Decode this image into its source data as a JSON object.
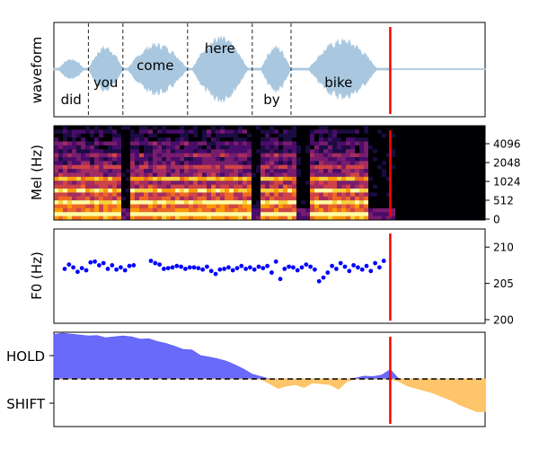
{
  "chart_data": [
    {
      "panel": "waveform",
      "type": "line",
      "ylabel": "waveform",
      "wave_color": "#a9c8e0",
      "words": [
        {
          "text": "did",
          "pos": "low",
          "start": 0.0,
          "end": 0.08
        },
        {
          "text": "you",
          "pos": "mid",
          "start": 0.08,
          "end": 0.16
        },
        {
          "text": "come",
          "pos": "high",
          "start": 0.16,
          "end": 0.31
        },
        {
          "text": "here",
          "pos": "top",
          "start": 0.31,
          "end": 0.46
        },
        {
          "text": "by",
          "pos": "low",
          "start": 0.46,
          "end": 0.55
        },
        {
          "text": "bike",
          "pos": "mid",
          "start": 0.55,
          "end": 0.77
        }
      ],
      "boundaries": [
        0.08,
        0.16,
        0.31,
        0.46,
        0.55
      ],
      "cursor": 0.78,
      "cursor_color": "#ff0000"
    },
    {
      "panel": "mel",
      "type": "heatmap",
      "ylabel": "Mel (Hz)",
      "yticks": [
        "4096",
        "2048",
        "1024",
        "512",
        "0"
      ],
      "cursor": 0.78
    },
    {
      "panel": "f0",
      "type": "scatter",
      "ylabel": "F0 (Hz)",
      "ylim": [
        199.5,
        212.5
      ],
      "yticks": [
        "210",
        "205",
        "200"
      ],
      "point_color": "#0000ff",
      "x": [
        0.025,
        0.035,
        0.045,
        0.055,
        0.065,
        0.075,
        0.085,
        0.095,
        0.105,
        0.115,
        0.125,
        0.135,
        0.145,
        0.155,
        0.165,
        0.175,
        0.185,
        0.225,
        0.235,
        0.245,
        0.255,
        0.265,
        0.275,
        0.285,
        0.295,
        0.305,
        0.315,
        0.325,
        0.335,
        0.345,
        0.355,
        0.365,
        0.375,
        0.385,
        0.395,
        0.405,
        0.415,
        0.425,
        0.435,
        0.445,
        0.455,
        0.465,
        0.475,
        0.485,
        0.495,
        0.505,
        0.515,
        0.525,
        0.535,
        0.545,
        0.555,
        0.565,
        0.575,
        0.585,
        0.595,
        0.605,
        0.615,
        0.625,
        0.635,
        0.645,
        0.655,
        0.665,
        0.675,
        0.685,
        0.695,
        0.705,
        0.715,
        0.725,
        0.735,
        0.745,
        0.755,
        0.765
      ],
      "y": [
        207.0,
        207.6,
        207.2,
        206.6,
        207.1,
        206.8,
        207.9,
        208.0,
        207.5,
        207.8,
        207.0,
        207.5,
        206.9,
        207.2,
        206.8,
        207.4,
        207.5,
        208.1,
        207.8,
        207.6,
        207.0,
        207.1,
        207.2,
        207.4,
        207.3,
        207.0,
        207.2,
        207.2,
        207.1,
        206.9,
        207.3,
        206.7,
        206.3,
        206.9,
        207.0,
        207.2,
        206.8,
        207.1,
        207.4,
        207.0,
        207.2,
        206.9,
        207.3,
        207.1,
        207.4,
        206.5,
        208.0,
        205.6,
        207.0,
        207.3,
        207.2,
        206.8,
        207.2,
        207.6,
        207.3,
        206.9,
        205.3,
        205.8,
        206.5,
        207.4,
        207.0,
        207.8,
        207.3,
        206.7,
        207.5,
        207.2,
        206.9,
        207.4,
        206.7,
        207.8,
        207.2,
        208.1
      ],
      "cursor": 0.78
    },
    {
      "panel": "hold_shift",
      "type": "area",
      "yticks": [
        "HOLD",
        "SHIFT"
      ],
      "hold_color": "#5a5afa",
      "shift_color": "#ffbf5a",
      "ylim": [
        -1,
        1
      ],
      "x": [
        0.0,
        0.02,
        0.04,
        0.06,
        0.08,
        0.1,
        0.12,
        0.14,
        0.16,
        0.18,
        0.2,
        0.22,
        0.24,
        0.26,
        0.28,
        0.3,
        0.32,
        0.34,
        0.36,
        0.38,
        0.4,
        0.42,
        0.44,
        0.46,
        0.48,
        0.5,
        0.52,
        0.54,
        0.56,
        0.58,
        0.6,
        0.62,
        0.64,
        0.66,
        0.68,
        0.7,
        0.72,
        0.74,
        0.76,
        0.78,
        0.8,
        0.82,
        0.84,
        0.86,
        0.88,
        0.9,
        0.92,
        0.94,
        0.96,
        0.98,
        1.0
      ],
      "values": [
        0.95,
        0.98,
        0.96,
        0.94,
        0.92,
        0.93,
        0.88,
        0.9,
        0.92,
        0.9,
        0.85,
        0.86,
        0.8,
        0.76,
        0.7,
        0.63,
        0.62,
        0.5,
        0.47,
        0.43,
        0.38,
        0.3,
        0.21,
        0.1,
        0.05,
        -0.1,
        -0.2,
        -0.15,
        -0.12,
        -0.18,
        -0.08,
        -0.1,
        -0.12,
        -0.22,
        -0.05,
        0.02,
        0.06,
        0.05,
        0.08,
        0.2,
        -0.05,
        -0.15,
        -0.2,
        -0.25,
        -0.3,
        -0.38,
        -0.45,
        -0.55,
        -0.62,
        -0.7,
        -0.7
      ],
      "cursor": 0.78
    }
  ]
}
